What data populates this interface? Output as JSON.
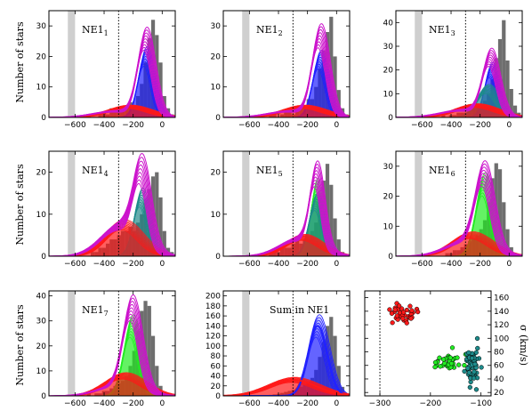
{
  "figure": {
    "ylabel_left": "Number of stars",
    "ylabel_right": "σ (km/s)"
  },
  "colors": {
    "bar": "#6e6e6e",
    "band": "#cfcfcf",
    "magenta": "#cc14cc",
    "blue": "#2222ff",
    "teal": "#1e8c8c",
    "green": "#22ee22",
    "red": "#ff1a1a"
  },
  "chart_data": [
    {
      "type": "bar",
      "title": "NE1",
      "sub": "1",
      "xlim": [
        -780,
        90
      ],
      "ylim": [
        0,
        35
      ],
      "yticks": [
        0,
        10,
        20,
        30
      ],
      "xticks": [
        -600,
        -400,
        -200,
        0
      ],
      "band": [
        -650,
        -600
      ],
      "vline": -300,
      "mag": [
        {
          "mu": -115,
          "sigma": 55,
          "amp": 25
        },
        {
          "mu": -320,
          "sigma": 150,
          "amp": 2
        }
      ],
      "comps": [
        {
          "color": "blue",
          "mu": -115,
          "sigma": 50,
          "amp": 20
        },
        {
          "color": "red",
          "mu": -230,
          "sigma": 140,
          "amp": 3.5
        }
      ],
      "bars": [
        0,
        0,
        0,
        0,
        0,
        0,
        0,
        1,
        0,
        0,
        1,
        2,
        1,
        3,
        2,
        2,
        3,
        4,
        5,
        4,
        7,
        11,
        18,
        26,
        32,
        27,
        18,
        7,
        3,
        1
      ]
    },
    {
      "type": "bar",
      "title": "NE1",
      "sub": "2",
      "xlim": [
        -780,
        90
      ],
      "ylim": [
        0,
        35
      ],
      "yticks": [
        0,
        10,
        20,
        30
      ],
      "xticks": [
        -600,
        -400,
        -200,
        0
      ],
      "band": [
        -650,
        -600
      ],
      "vline": -300,
      "mag": [
        {
          "mu": -115,
          "sigma": 55,
          "amp": 26
        },
        {
          "mu": -320,
          "sigma": 150,
          "amp": 2
        }
      ],
      "comps": [
        {
          "color": "blue",
          "mu": -115,
          "sigma": 50,
          "amp": 19
        },
        {
          "color": "red",
          "mu": -230,
          "sigma": 140,
          "amp": 3.5
        }
      ],
      "bars": [
        0,
        0,
        0,
        0,
        0,
        0,
        0,
        0,
        0,
        1,
        1,
        0,
        1,
        2,
        2,
        1,
        3,
        3,
        4,
        6,
        6,
        10,
        16,
        22,
        28,
        33,
        20,
        9,
        3,
        1
      ]
    },
    {
      "type": "bar",
      "title": "NE1",
      "sub": "3",
      "xlim": [
        -780,
        90
      ],
      "ylim": [
        0,
        45
      ],
      "yticks": [
        0,
        10,
        20,
        30,
        40
      ],
      "xticks": [
        -600,
        -400,
        -200,
        0
      ],
      "band": [
        -650,
        -600
      ],
      "vline": -300,
      "mag": [
        {
          "mu": -130,
          "sigma": 55,
          "amp": 24
        },
        {
          "mu": -320,
          "sigma": 150,
          "amp": 3
        }
      ],
      "comps": [
        {
          "color": "blue",
          "mu": -125,
          "sigma": 45,
          "amp": 20
        },
        {
          "color": "teal",
          "mu": -150,
          "sigma": 70,
          "amp": 12
        },
        {
          "color": "red",
          "mu": -230,
          "sigma": 140,
          "amp": 5
        }
      ],
      "bars": [
        0,
        0,
        0,
        0,
        0,
        0,
        0,
        0,
        0,
        1,
        0,
        1,
        1,
        2,
        2,
        2,
        3,
        4,
        5,
        5,
        7,
        10,
        16,
        25,
        33,
        41,
        24,
        12,
        5,
        2
      ]
    },
    {
      "type": "bar",
      "title": "NE1",
      "sub": "4",
      "xlim": [
        -780,
        90
      ],
      "ylim": [
        0,
        25
      ],
      "yticks": [
        0,
        10,
        20
      ],
      "xticks": [
        -600,
        -400,
        -200,
        0
      ],
      "band": [
        -650,
        -600
      ],
      "vline": -300,
      "mag": [
        {
          "mu": -145,
          "sigma": 55,
          "amp": 17
        },
        {
          "mu": -290,
          "sigma": 130,
          "amp": 7
        }
      ],
      "comps": [
        {
          "color": "teal",
          "mu": -145,
          "sigma": 50,
          "amp": 14
        },
        {
          "color": "red",
          "mu": -270,
          "sigma": 120,
          "amp": 7.5
        }
      ],
      "bars": [
        0,
        0,
        0,
        0,
        0,
        0,
        0,
        0,
        1,
        1,
        2,
        2,
        3,
        4,
        4,
        5,
        6,
        6,
        7,
        6,
        8,
        10,
        13,
        16,
        19,
        20,
        14,
        6,
        2,
        1
      ]
    },
    {
      "type": "bar",
      "title": "NE1",
      "sub": "5",
      "xlim": [
        -780,
        90
      ],
      "ylim": [
        0,
        25
      ],
      "yticks": [
        0,
        10,
        20
      ],
      "xticks": [
        -600,
        -400,
        -200,
        0
      ],
      "band": [
        -650,
        -600
      ],
      "vline": -300,
      "mag": [
        {
          "mu": -140,
          "sigma": 45,
          "amp": 17
        },
        {
          "mu": -260,
          "sigma": 130,
          "amp": 4
        }
      ],
      "comps": [
        {
          "color": "green",
          "mu": -140,
          "sigma": 40,
          "amp": 16
        },
        {
          "color": "teal",
          "mu": -140,
          "sigma": 50,
          "amp": 13
        },
        {
          "color": "red",
          "mu": -230,
          "sigma": 120,
          "amp": 4.5
        }
      ],
      "bars": [
        0,
        0,
        0,
        0,
        0,
        0,
        0,
        0,
        0,
        1,
        1,
        1,
        2,
        2,
        2,
        3,
        4,
        3,
        4,
        4,
        6,
        8,
        12,
        18,
        22,
        17,
        9,
        4,
        1,
        0
      ]
    },
    {
      "type": "bar",
      "title": "NE1",
      "sub": "6",
      "xlim": [
        -780,
        90
      ],
      "ylim": [
        0,
        35
      ],
      "yticks": [
        0,
        10,
        20,
        30
      ],
      "xticks": [
        -600,
        -400,
        -200,
        0
      ],
      "band": [
        -650,
        -600
      ],
      "vline": -300,
      "mag": [
        {
          "mu": -175,
          "sigma": 60,
          "amp": 24
        },
        {
          "mu": -290,
          "sigma": 140,
          "amp": 5
        }
      ],
      "comps": [
        {
          "color": "green",
          "mu": -175,
          "sigma": 55,
          "amp": 24
        },
        {
          "color": "red",
          "mu": -260,
          "sigma": 130,
          "amp": 7
        }
      ],
      "bars": [
        0,
        0,
        0,
        0,
        0,
        0,
        0,
        0,
        0,
        0,
        1,
        1,
        2,
        2,
        3,
        4,
        5,
        6,
        7,
        9,
        12,
        18,
        26,
        31,
        29,
        18,
        9,
        3,
        1,
        0
      ]
    },
    {
      "type": "bar",
      "title": "NE1",
      "sub": "7",
      "xlim": [
        -780,
        90
      ],
      "ylim": [
        0,
        42
      ],
      "yticks": [
        0,
        10,
        20,
        30,
        40
      ],
      "xticks": [
        -600,
        -400,
        -200,
        0
      ],
      "band": [
        -650,
        -600
      ],
      "vline": -300,
      "mag": [
        {
          "mu": -210,
          "sigma": 60,
          "amp": 32
        },
        {
          "mu": -300,
          "sigma": 140,
          "amp": 4
        }
      ],
      "comps": [
        {
          "color": "green",
          "mu": -210,
          "sigma": 55,
          "amp": 28
        },
        {
          "color": "red",
          "mu": -260,
          "sigma": 130,
          "amp": 8
        }
      ],
      "bars": [
        0,
        0,
        0,
        0,
        0,
        0,
        0,
        1,
        0,
        1,
        1,
        2,
        2,
        3,
        4,
        5,
        6,
        8,
        12,
        18,
        26,
        34,
        38,
        36,
        24,
        12,
        4,
        1,
        0,
        0
      ]
    },
    {
      "type": "bar",
      "title": "Sum in NE1",
      "sub": "",
      "xlim": [
        -780,
        90
      ],
      "ylim": [
        0,
        210
      ],
      "yticks": [
        0,
        20,
        40,
        60,
        80,
        100,
        120,
        140,
        160,
        180,
        200
      ],
      "xticks": [
        -600,
        -400,
        -200,
        0
      ],
      "band": [
        -650,
        -600
      ],
      "vline": -300,
      "mag": [],
      "comps": [
        {
          "color": "blue",
          "mu": -130,
          "sigma": 65,
          "amp": 140
        },
        {
          "color": "red",
          "mu": -300,
          "sigma": 160,
          "amp": 32
        }
      ],
      "bars": [
        0,
        0,
        0,
        0,
        0,
        0,
        0,
        1,
        1,
        2,
        3,
        4,
        6,
        8,
        10,
        12,
        15,
        18,
        22,
        28,
        36,
        52,
        78,
        108,
        140,
        158,
        120,
        60,
        18,
        4
      ]
    },
    {
      "type": "scatter",
      "xlim": [
        -330,
        -80
      ],
      "ylim": [
        15,
        170
      ],
      "xticks": [
        -300,
        -200,
        -100
      ],
      "yticks": [
        20,
        40,
        60,
        80,
        100,
        120,
        140,
        160
      ],
      "vline": -300,
      "clusters": [
        {
          "color": "red",
          "x": -250,
          "y": 135,
          "sx": 14,
          "sy": 6,
          "n": 40
        },
        {
          "color": "green",
          "x": -165,
          "y": 65,
          "sx": 12,
          "sy": 6,
          "n": 40
        },
        {
          "color": "teal",
          "x": -118,
          "y": 62,
          "sx": 7,
          "sy": 12,
          "n": 70
        }
      ]
    }
  ]
}
